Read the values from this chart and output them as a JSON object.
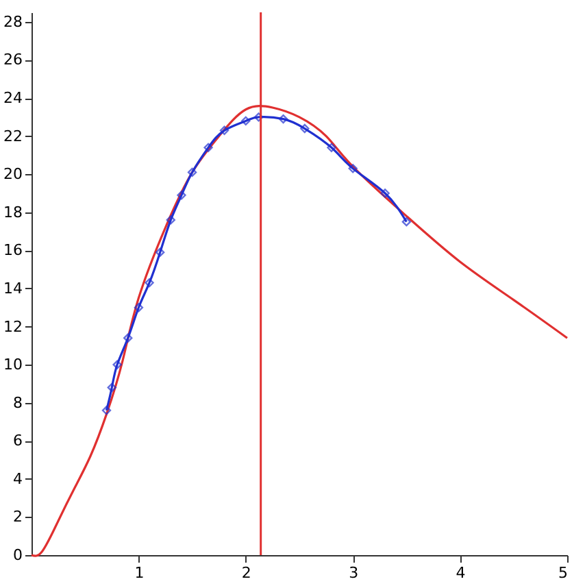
{
  "chart_data": {
    "type": "line",
    "xlim": [
      0,
      5
    ],
    "ylim": [
      0,
      28.5
    ],
    "xticks": [
      1,
      2,
      3,
      4,
      5
    ],
    "yticks": [
      0,
      2,
      4,
      6,
      8,
      10,
      12,
      14,
      16,
      18,
      20,
      22,
      24,
      26,
      28
    ],
    "grid": false,
    "series": [
      {
        "color": "#e03030",
        "marker": "none",
        "line_style": "solid",
        "x": [
          0,
          0.1,
          0.25,
          0.4,
          0.55,
          0.7,
          0.85,
          1.0,
          1.25,
          1.5,
          1.75,
          2.0,
          2.25,
          2.5,
          2.75,
          3.0,
          3.5,
          4.0,
          4.5,
          5.0
        ],
        "values": [
          0,
          0.2,
          1.8,
          3.5,
          5.2,
          7.4,
          10.2,
          13.5,
          17.2,
          20.1,
          22.0,
          23.4,
          23.5,
          23.0,
          22.0,
          20.4,
          17.8,
          15.4,
          13.4,
          11.4
        ]
      },
      {
        "color": "#2030d0",
        "marker": "diamond",
        "line_style": "solid",
        "x": [
          0.7,
          0.75,
          0.8,
          0.9,
          1.0,
          1.1,
          1.2,
          1.3,
          1.4,
          1.5,
          1.65,
          1.8,
          2.0,
          2.12,
          2.35,
          2.55,
          2.8,
          3.0,
          3.3,
          3.5
        ],
        "values": [
          7.6,
          8.8,
          10.0,
          11.4,
          13.0,
          14.3,
          15.9,
          17.6,
          18.9,
          20.1,
          21.4,
          22.3,
          22.8,
          23.0,
          22.9,
          22.4,
          21.4,
          20.3,
          19.0,
          17.5
        ]
      }
    ],
    "ref_lines": [
      {
        "axis": "x",
        "value": 2.14,
        "color": "#e03030",
        "line_style": "solid"
      }
    ]
  }
}
